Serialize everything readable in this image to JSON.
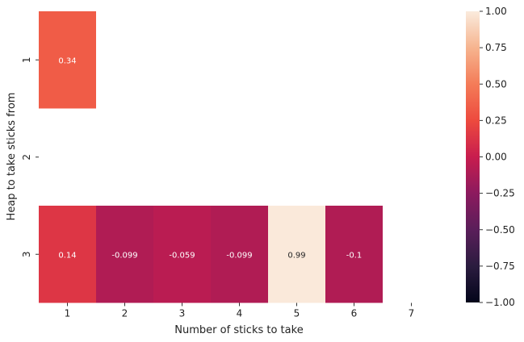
{
  "chart_data": {
    "type": "heatmap",
    "xlabel": "Number of sticks to take",
    "ylabel": "Heap to take sticks from",
    "x_categories": [
      "1",
      "2",
      "3",
      "4",
      "5",
      "6",
      "7"
    ],
    "y_categories": [
      "1",
      "2",
      "3"
    ],
    "values": [
      [
        0.34,
        null,
        null,
        null,
        null,
        null,
        null
      ],
      [
        null,
        null,
        null,
        null,
        null,
        null,
        null
      ],
      [
        0.14,
        -0.099,
        -0.059,
        -0.099,
        0.99,
        -0.1,
        null
      ]
    ],
    "value_labels": [
      [
        "0.34",
        null,
        null,
        null,
        null,
        null,
        null
      ],
      [
        null,
        null,
        null,
        null,
        null,
        null,
        null
      ],
      [
        "0.14",
        "-0.099",
        "-0.059",
        "-0.099",
        "0.99",
        "-0.1",
        null
      ]
    ],
    "colorbar": {
      "range": [
        -1.0,
        1.0
      ],
      "ticks": [
        1.0,
        0.75,
        0.5,
        0.25,
        0.0,
        -0.25,
        -0.5,
        -0.75,
        -1.0
      ],
      "tick_labels": [
        "1.00",
        "0.75",
        "0.50",
        "0.25",
        "0.00",
        "−0.25",
        "−0.50",
        "−0.75",
        "−1.00"
      ],
      "colormap": "rocket"
    },
    "grid": false
  }
}
